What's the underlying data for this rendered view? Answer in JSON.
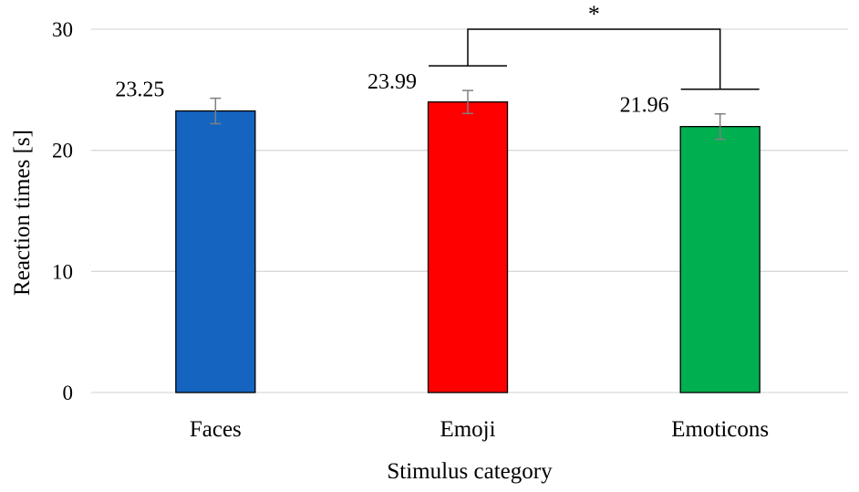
{
  "chart_data": {
    "type": "bar",
    "title": "",
    "xlabel": "Stimulus category",
    "ylabel": "Reaction times [s]",
    "ylim": [
      0,
      30
    ],
    "yticks": [
      0,
      10,
      20,
      30
    ],
    "grid": "horizontal",
    "legend": "none",
    "categories": [
      "Faces",
      "Emoji",
      "Emoticons"
    ],
    "values": [
      23.25,
      23.99,
      21.96
    ],
    "value_labels": [
      "23.25",
      "23.99",
      "21.96"
    ],
    "error": [
      1.05,
      0.95,
      1.05
    ],
    "colors": [
      "#1565c0",
      "#ff0000",
      "#00b050"
    ],
    "significance": [
      {
        "from": "Emoji",
        "to": "Emoticons",
        "label": "*"
      }
    ]
  }
}
